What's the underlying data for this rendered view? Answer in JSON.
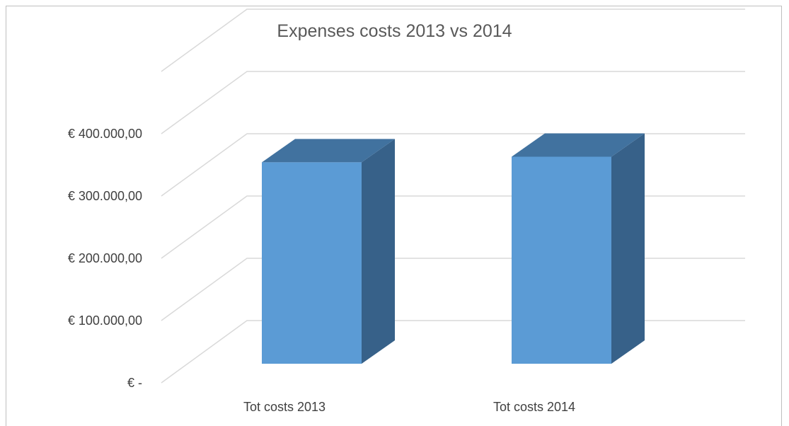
{
  "chart_data": {
    "type": "bar",
    "title": "Expenses costs 2013 vs 2014",
    "categories": [
      "Tot costs 2013",
      "Tot costs 2014"
    ],
    "values": [
      345000,
      354000
    ],
    "ylim": [
      0,
      400000
    ],
    "yticks": [
      0,
      100000,
      200000,
      300000,
      400000
    ],
    "ytick_labels": [
      "€ -",
      "€ 100.000,00",
      "€ 200.000,00",
      "€ 300.000,00",
      "€ 400.000,00"
    ],
    "grid": true,
    "style": "3d-column",
    "colors": {
      "front": "#5b9bd5",
      "top": "#41729f",
      "side": "#376189",
      "grid": "#d9d9d9"
    }
  }
}
